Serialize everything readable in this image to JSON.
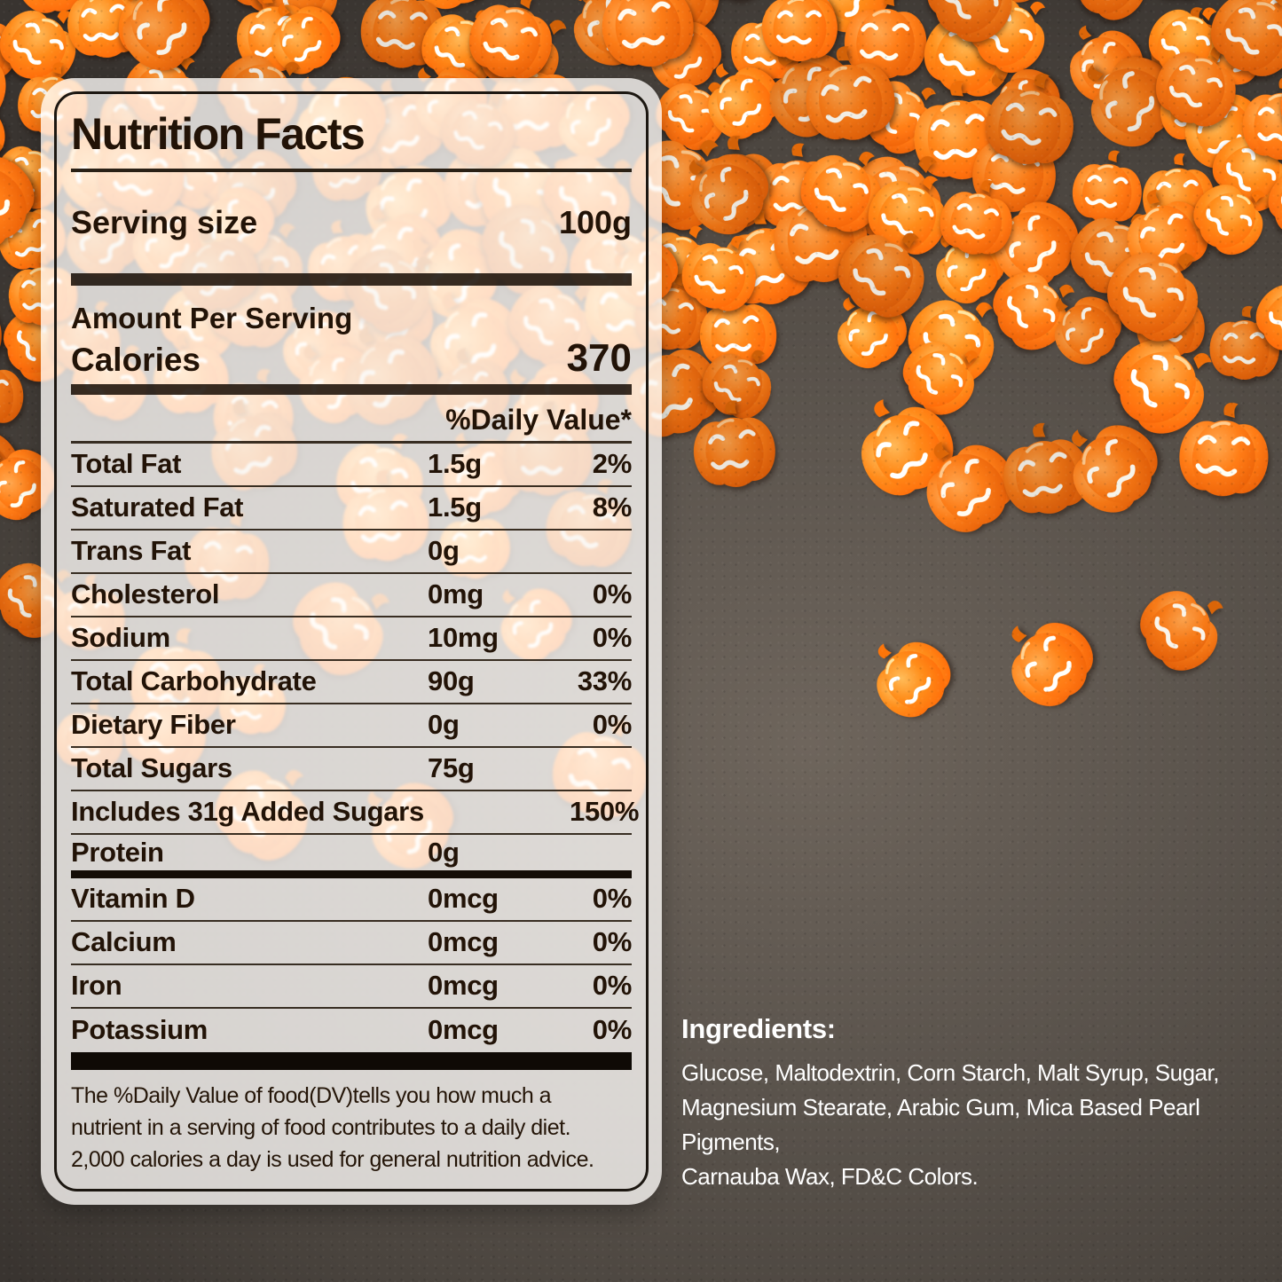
{
  "label": {
    "title": "Nutrition Facts",
    "serving_size_label": "Serving size",
    "serving_size_value": "100g",
    "amount_per_serving": "Amount Per Serving",
    "calories_label": "Calories",
    "calories_value": "370",
    "daily_value_header": "%Daily Value*",
    "rows": [
      {
        "name": "Total Fat",
        "amount": "1.5g",
        "dv": "2%"
      },
      {
        "name": "Saturated Fat",
        "amount": "1.5g",
        "dv": "8%"
      },
      {
        "name": "Trans Fat",
        "amount": "0g",
        "dv": ""
      },
      {
        "name": "Cholesterol",
        "amount": "0mg",
        "dv": "0%"
      },
      {
        "name": "Sodium",
        "amount": "10mg",
        "dv": "0%"
      },
      {
        "name": "Total Carbohydrate",
        "amount": "90g",
        "dv": "33%"
      },
      {
        "name": "Dietary Fiber",
        "amount": "0g",
        "dv": "0%"
      },
      {
        "name": "Total Sugars",
        "amount": "75g",
        "dv": ""
      },
      {
        "name": "Includes 31g Added Sugars",
        "amount": "",
        "dv": "150%"
      },
      {
        "name": "Protein",
        "amount": "0g",
        "dv": "",
        "thick_after": true
      },
      {
        "name": "Vitamin D",
        "amount": "0mcg",
        "dv": "0%"
      },
      {
        "name": "Calcium",
        "amount": "0mcg",
        "dv": "0%"
      },
      {
        "name": "Iron",
        "amount": "0mcg",
        "dv": "0%"
      },
      {
        "name": "Potassium",
        "amount": "0mcg",
        "dv": "0%"
      }
    ],
    "footnote": "The %Daily Value of food(DV)tells you how much a\nnutrient in a serving of food contributes to a daily diet.\n2,000 calories a day is used for general nutrition advice."
  },
  "ingredients": {
    "heading": "Ingredients:",
    "text": "Glucose, Maltodextrin, Corn Starch, Malt Syrup, Sugar,\nMagnesium Stearate, Arabic Gum, Mica Based Pearl Pigments,\nCarnauba Wax, FD&C Colors."
  },
  "colors": {
    "candy_orange": "#fc7c17",
    "background_surface": "#57504a",
    "label_text": "#221307",
    "ingredients_text": "#ffffff"
  }
}
